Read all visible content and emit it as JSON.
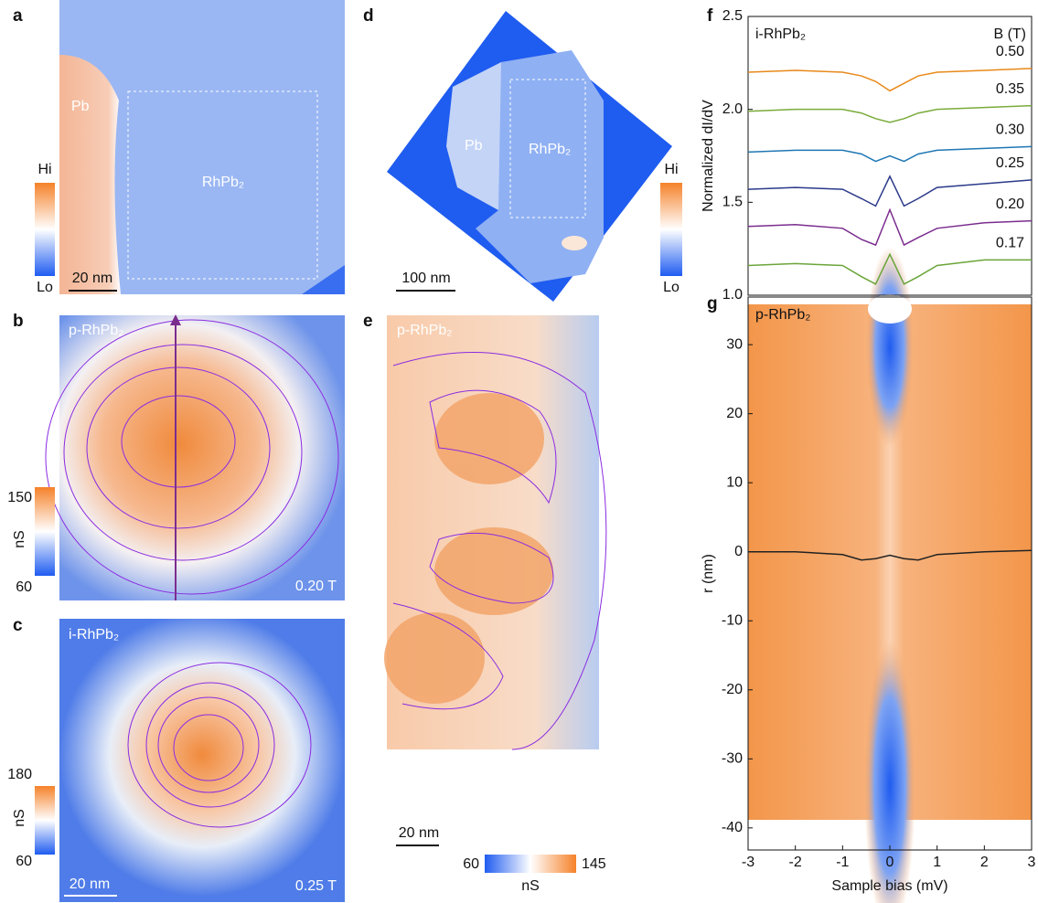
{
  "panels": {
    "a": {
      "letter": "a",
      "region1": "Pb",
      "region2": "RhPb₂",
      "hi": "Hi",
      "lo": "Lo",
      "scale_bar": "20 nm"
    },
    "b": {
      "letter": "b",
      "label": "p-RhPb₂",
      "cbar_max": 150,
      "cbar_min": 60,
      "cbar_unit": "nS",
      "field": "0.20 T"
    },
    "c": {
      "letter": "c",
      "label": "i-RhPb₂",
      "cbar_max": 180,
      "cbar_min": 60,
      "cbar_unit": "nS",
      "scale_bar": "20 nm",
      "field": "0.25 T"
    },
    "d": {
      "letter": "d",
      "region1": "Pb",
      "region2": "RhPb₂",
      "hi": "Hi",
      "lo": "Lo",
      "scale_bar": "100 nm"
    },
    "e": {
      "letter": "e",
      "label": "p-RhPb₂",
      "scale_bar": "20 nm",
      "cbar_min": 60,
      "cbar_max": 145,
      "cbar_unit": "nS"
    }
  },
  "chart_data": [
    {
      "type": "line",
      "letter": "f",
      "annotation": "i-RhPb₂",
      "legend_title": "B (T)",
      "ylabel": "Normalized dI/dV",
      "x": [
        -3,
        -2,
        -1,
        -0.6,
        -0.3,
        0,
        0.3,
        0.6,
        1,
        2,
        3
      ],
      "xlim": [
        -3,
        3
      ],
      "ylim": [
        1.0,
        2.5
      ],
      "yticks": [
        {
          "value": 1.0,
          "label": "1.0"
        },
        1.5,
        {
          "value": 2.0,
          "label": "2.0"
        },
        2.5
      ],
      "series": [
        {
          "name": "0.50",
          "color": "#e8891a",
          "values": [
            2.2,
            2.21,
            2.2,
            2.18,
            2.15,
            2.1,
            2.14,
            2.18,
            2.2,
            2.21,
            2.22
          ]
        },
        {
          "name": "0.35",
          "color": "#7aab3a",
          "values": [
            1.99,
            2.0,
            2.0,
            1.98,
            1.95,
            1.93,
            1.95,
            1.98,
            2.0,
            2.01,
            2.02
          ]
        },
        {
          "name": "0.30",
          "color": "#1f77b4",
          "values": [
            1.77,
            1.78,
            1.78,
            1.76,
            1.72,
            1.75,
            1.72,
            1.76,
            1.78,
            1.79,
            1.8
          ]
        },
        {
          "name": "0.25",
          "color": "#2b3a8a",
          "values": [
            1.57,
            1.58,
            1.57,
            1.52,
            1.48,
            1.64,
            1.48,
            1.52,
            1.58,
            1.6,
            1.62
          ]
        },
        {
          "name": "0.20",
          "color": "#7b2d8e",
          "values": [
            1.37,
            1.38,
            1.36,
            1.3,
            1.27,
            1.46,
            1.27,
            1.31,
            1.36,
            1.39,
            1.4
          ]
        },
        {
          "name": "0.17",
          "color": "#6aa53a",
          "values": [
            1.16,
            1.17,
            1.16,
            1.1,
            1.06,
            1.22,
            1.06,
            1.1,
            1.16,
            1.19,
            1.19
          ]
        }
      ]
    },
    {
      "type": "line",
      "letter": "g",
      "annotation": "p-RhPb₂",
      "xlabel": "Sample bias (mV)",
      "ylabel": "r (nm)",
      "x": [
        -3,
        -2,
        -1,
        -0.6,
        -0.3,
        0,
        0.3,
        0.6,
        1,
        2,
        3
      ],
      "xlim": [
        -3,
        3
      ],
      "xticks": [
        -3,
        -2,
        -1,
        0,
        1,
        2,
        3
      ],
      "ylim": [
        -43.2,
        36.9
      ],
      "yticks": [
        -40,
        -30,
        -20,
        -10,
        0,
        10,
        20,
        30
      ],
      "series": [
        {
          "color": "#222222",
          "values": [
            0,
            0,
            -0.4,
            -1.2,
            -1.0,
            -0.5,
            -1.0,
            -1.2,
            -0.4,
            0,
            0.2
          ]
        }
      ]
    }
  ]
}
